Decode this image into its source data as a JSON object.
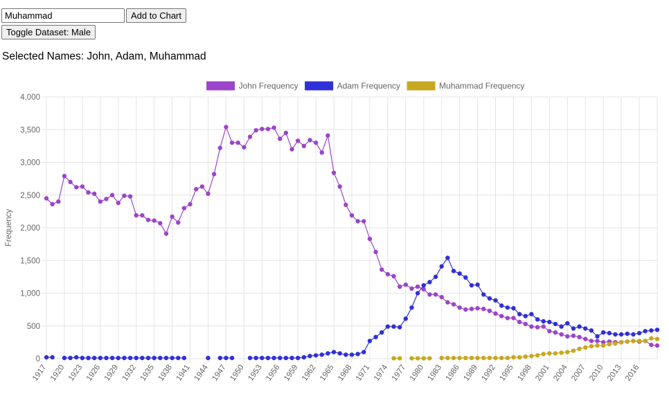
{
  "controls": {
    "name_value": "Muhammad",
    "add_button": "Add to Chart",
    "toggle_button": "Toggle Dataset: Male"
  },
  "selected_names_label": "Selected Names: John, Adam, Muhammad",
  "chart_data": {
    "type": "line",
    "ylabel": "Frequency",
    "xlabel": "",
    "ylim": [
      0,
      4000
    ],
    "yticks": [
      0,
      500,
      1000,
      1500,
      2000,
      2500,
      3000,
      3500,
      4000
    ],
    "ytick_labels": [
      "0",
      "500",
      "1,000",
      "1,500",
      "2,000",
      "2,500",
      "3,000",
      "3,500",
      "4,000"
    ],
    "grid": true,
    "legend_position": "top-center",
    "x": [
      1917,
      1918,
      1919,
      1920,
      1921,
      1922,
      1923,
      1924,
      1925,
      1926,
      1927,
      1928,
      1929,
      1930,
      1931,
      1932,
      1933,
      1934,
      1935,
      1936,
      1937,
      1938,
      1939,
      1940,
      1941,
      1942,
      1943,
      1944,
      1945,
      1946,
      1947,
      1948,
      1949,
      1950,
      1951,
      1952,
      1953,
      1954,
      1955,
      1956,
      1957,
      1958,
      1959,
      1960,
      1961,
      1962,
      1963,
      1964,
      1965,
      1966,
      1967,
      1968,
      1969,
      1970,
      1971,
      1972,
      1973,
      1974,
      1975,
      1976,
      1977,
      1978,
      1979,
      1980,
      1981,
      1982,
      1983,
      1984,
      1985,
      1986,
      1987,
      1988,
      1989,
      1990,
      1991,
      1992,
      1993,
      1994,
      1995,
      1996,
      1997,
      1998,
      1999,
      2000,
      2001,
      2002,
      2003,
      2004,
      2005,
      2006,
      2007,
      2008,
      2009,
      2010,
      2011,
      2012,
      2013,
      2014,
      2015,
      2016,
      2017,
      2018,
      2019
    ],
    "xtick_labels": [
      "1917",
      "1920",
      "1923",
      "1926",
      "1929",
      "1932",
      "1935",
      "1938",
      "1941",
      "1944",
      "1947",
      "1950",
      "1953",
      "1956",
      "1959",
      "1962",
      "1965",
      "1968",
      "1971",
      "1974",
      "1977",
      "1980",
      "1983",
      "1986",
      "1989",
      "1992",
      "1995",
      "1998",
      "2001",
      "2004",
      "2007",
      "2010",
      "2013",
      "2016"
    ],
    "series": [
      {
        "name": "John Frequency",
        "color": "#9b45c8",
        "values": [
          2450,
          2360,
          2400,
          2790,
          2700,
          2620,
          2630,
          2540,
          2520,
          2400,
          2440,
          2500,
          2380,
          2490,
          2480,
          2190,
          2190,
          2120,
          2110,
          2070,
          1910,
          2170,
          2080,
          2300,
          2360,
          2590,
          2630,
          2520,
          2820,
          3220,
          3540,
          3300,
          3300,
          3230,
          3390,
          3490,
          3510,
          3510,
          3530,
          3360,
          3450,
          3200,
          3330,
          3250,
          3340,
          3300,
          3150,
          3410,
          2840,
          2630,
          2350,
          2190,
          2100,
          2100,
          1830,
          1630,
          1360,
          1290,
          1260,
          1100,
          1130,
          1070,
          1100,
          1060,
          980,
          980,
          940,
          860,
          830,
          780,
          750,
          760,
          770,
          760,
          730,
          690,
          650,
          620,
          620,
          560,
          530,
          490,
          480,
          490,
          420,
          400,
          370,
          340,
          350,
          330,
          300,
          270,
          270,
          250,
          260,
          250,
          250,
          260,
          270,
          260,
          270,
          210,
          200
        ]
      },
      {
        "name": "Adam Frequency",
        "color": "#3030d8",
        "values": [
          20,
          20,
          null,
          10,
          10,
          20,
          10,
          10,
          10,
          10,
          10,
          10,
          10,
          10,
          10,
          10,
          10,
          10,
          10,
          10,
          10,
          10,
          10,
          10,
          null,
          null,
          null,
          10,
          null,
          10,
          10,
          10,
          null,
          null,
          10,
          10,
          10,
          10,
          10,
          10,
          10,
          10,
          10,
          20,
          40,
          50,
          60,
          80,
          100,
          80,
          60,
          60,
          70,
          100,
          270,
          330,
          400,
          490,
          490,
          480,
          610,
          780,
          1000,
          1120,
          1170,
          1250,
          1410,
          1540,
          1340,
          1300,
          1240,
          1120,
          1130,
          980,
          920,
          890,
          810,
          780,
          770,
          680,
          650,
          680,
          600,
          570,
          560,
          530,
          490,
          540,
          460,
          490,
          460,
          430,
          340,
          400,
          390,
          370,
          370,
          380,
          370,
          390,
          420,
          430,
          440
        ]
      },
      {
        "name": "Muhammad Frequency",
        "color": "#c8a820",
        "values": [
          null,
          null,
          null,
          null,
          null,
          null,
          null,
          null,
          null,
          null,
          null,
          null,
          null,
          null,
          null,
          null,
          null,
          null,
          null,
          null,
          null,
          null,
          null,
          null,
          null,
          null,
          null,
          null,
          null,
          null,
          null,
          null,
          null,
          null,
          null,
          null,
          null,
          null,
          null,
          null,
          null,
          null,
          null,
          null,
          null,
          null,
          null,
          null,
          null,
          null,
          null,
          null,
          null,
          null,
          null,
          null,
          null,
          null,
          5,
          5,
          null,
          5,
          5,
          5,
          5,
          null,
          10,
          10,
          10,
          10,
          10,
          10,
          10,
          10,
          10,
          10,
          10,
          10,
          20,
          20,
          30,
          40,
          50,
          70,
          80,
          80,
          90,
          100,
          120,
          150,
          170,
          190,
          200,
          200,
          220,
          230,
          250,
          260,
          270,
          270,
          270,
          310,
          300
        ]
      }
    ]
  }
}
